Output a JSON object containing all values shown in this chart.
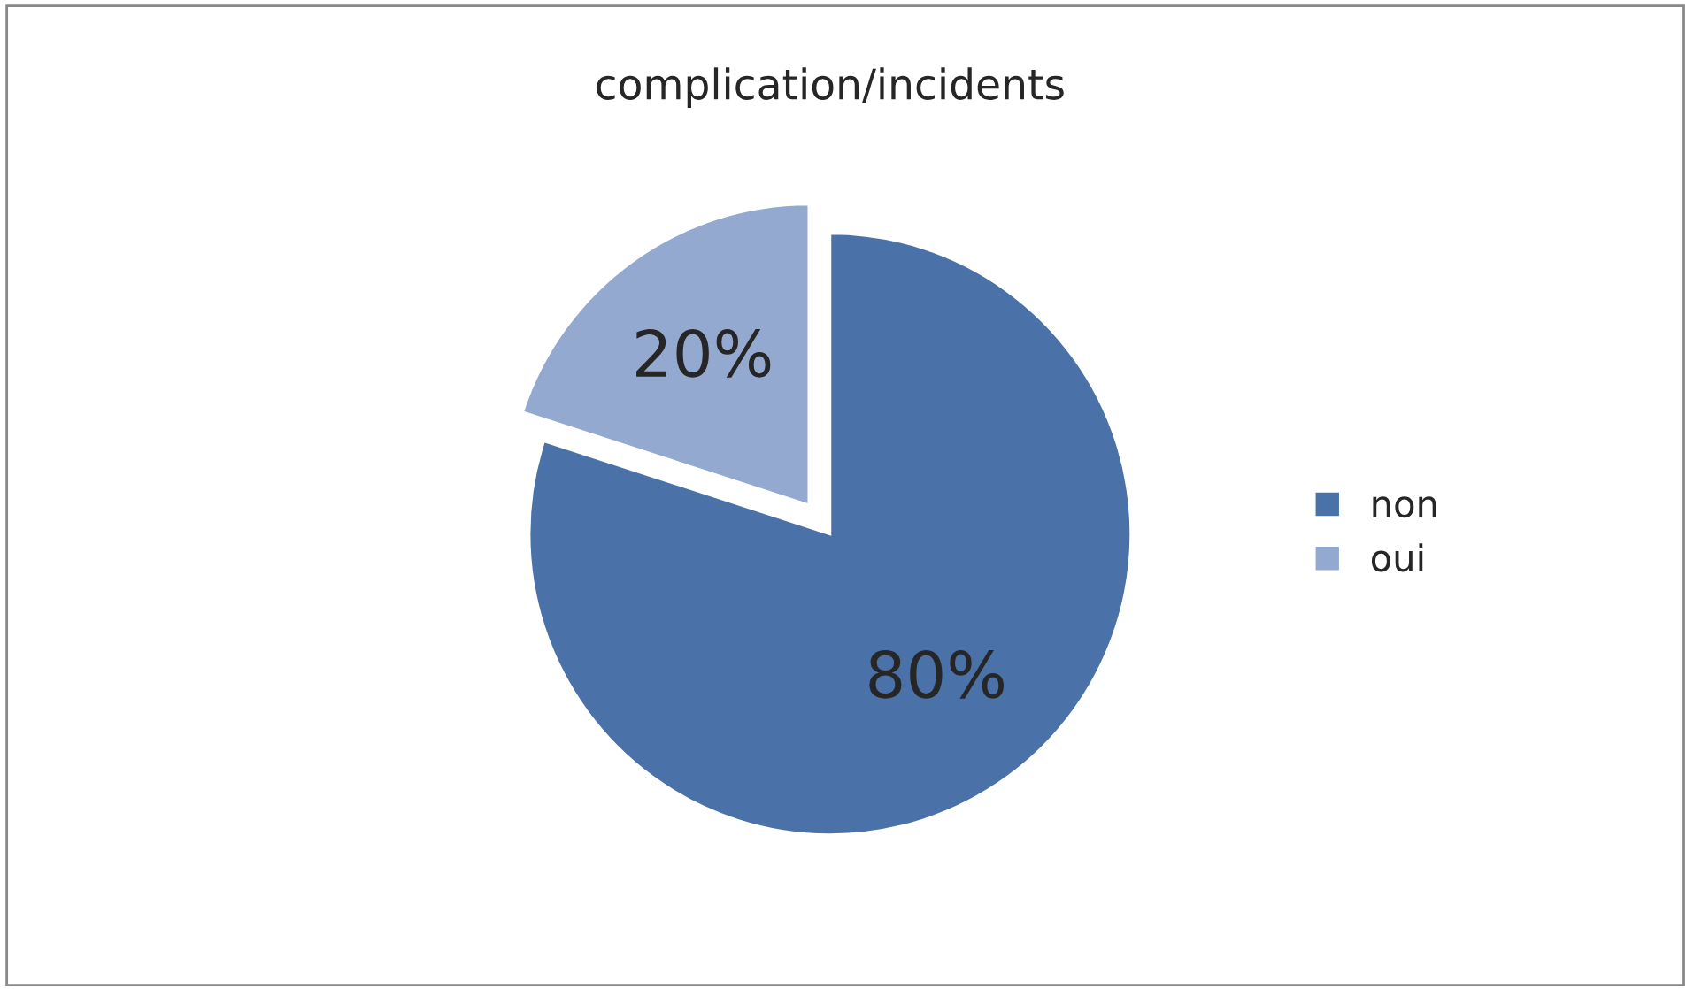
{
  "chart_data": {
    "type": "pie",
    "title": "complication/incidents",
    "categories": [
      "non",
      "oui"
    ],
    "values": [
      80,
      20
    ],
    "value_labels": [
      "80%",
      "20%"
    ],
    "colors": [
      "#4a72a8",
      "#94a9cf"
    ],
    "legend": "right"
  }
}
